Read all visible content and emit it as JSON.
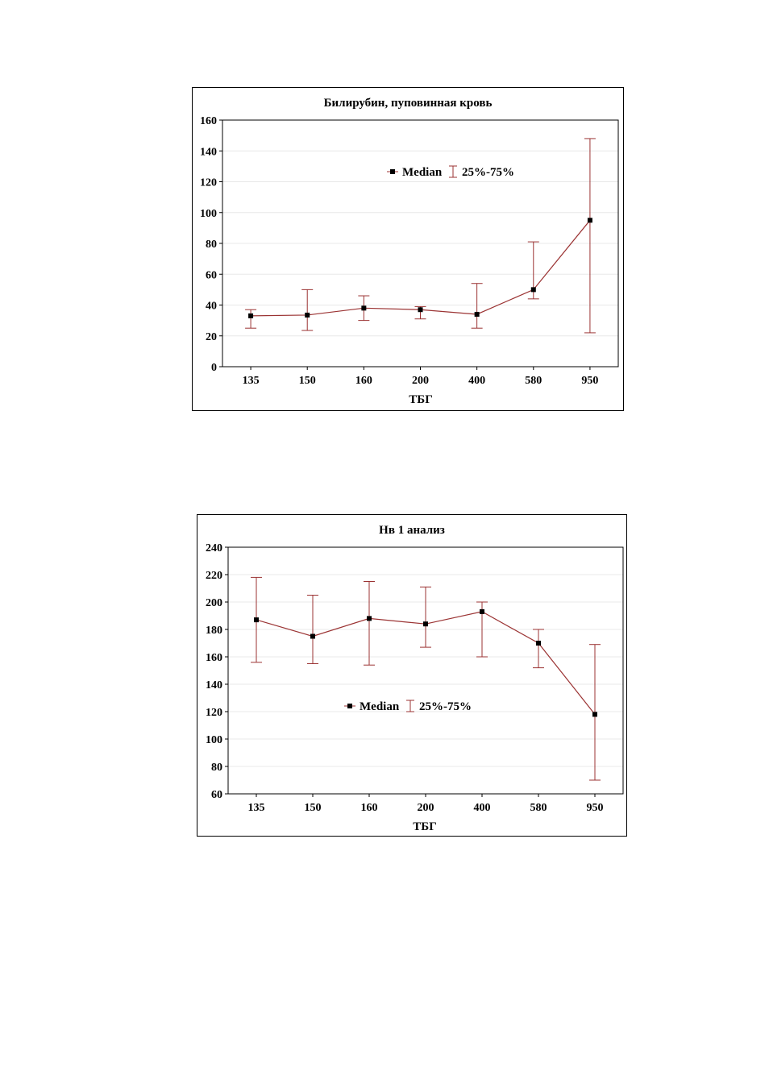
{
  "chart_data": [
    {
      "type": "line",
      "title": "Билирубин, пуповинная кровь",
      "xlabel": "ТБГ",
      "ylabel": "",
      "categories": [
        "135",
        "150",
        "160",
        "200",
        "400",
        "580",
        "950"
      ],
      "ylim": [
        0,
        160
      ],
      "yticks": [
        0,
        20,
        40,
        60,
        80,
        100,
        120,
        140,
        160
      ],
      "grid": true,
      "legend_position": "top-center",
      "legend": {
        "median_label": "Median",
        "range_label": "25%-75%"
      },
      "series": [
        {
          "name": "Median",
          "values": [
            33,
            33.5,
            38,
            37,
            34,
            50,
            95
          ],
          "q25": [
            25,
            23.5,
            30,
            31,
            25,
            44,
            22
          ],
          "q75": [
            37,
            50,
            46,
            39,
            54,
            81,
            148
          ]
        }
      ],
      "colors": {
        "line": "#9b3333",
        "marker": "#000000",
        "grid": "#e8e8e8"
      }
    },
    {
      "type": "line",
      "title": "Нв 1 анализ",
      "xlabel": "ТБГ",
      "ylabel": "",
      "categories": [
        "135",
        "150",
        "160",
        "200",
        "400",
        "580",
        "950"
      ],
      "ylim": [
        60,
        240
      ],
      "yticks": [
        60,
        80,
        100,
        120,
        140,
        160,
        180,
        200,
        220,
        240
      ],
      "grid": true,
      "legend_position": "center",
      "legend": {
        "median_label": "Median",
        "range_label": "25%-75%"
      },
      "series": [
        {
          "name": "Median",
          "values": [
            187,
            175,
            188,
            184,
            193,
            170,
            118
          ],
          "q25": [
            156,
            155,
            154,
            167,
            160,
            152,
            70
          ],
          "q75": [
            218,
            205,
            215,
            211,
            200,
            180,
            169
          ]
        }
      ],
      "colors": {
        "line": "#9b3333",
        "marker": "#000000",
        "grid": "#e8e8e8"
      }
    }
  ]
}
